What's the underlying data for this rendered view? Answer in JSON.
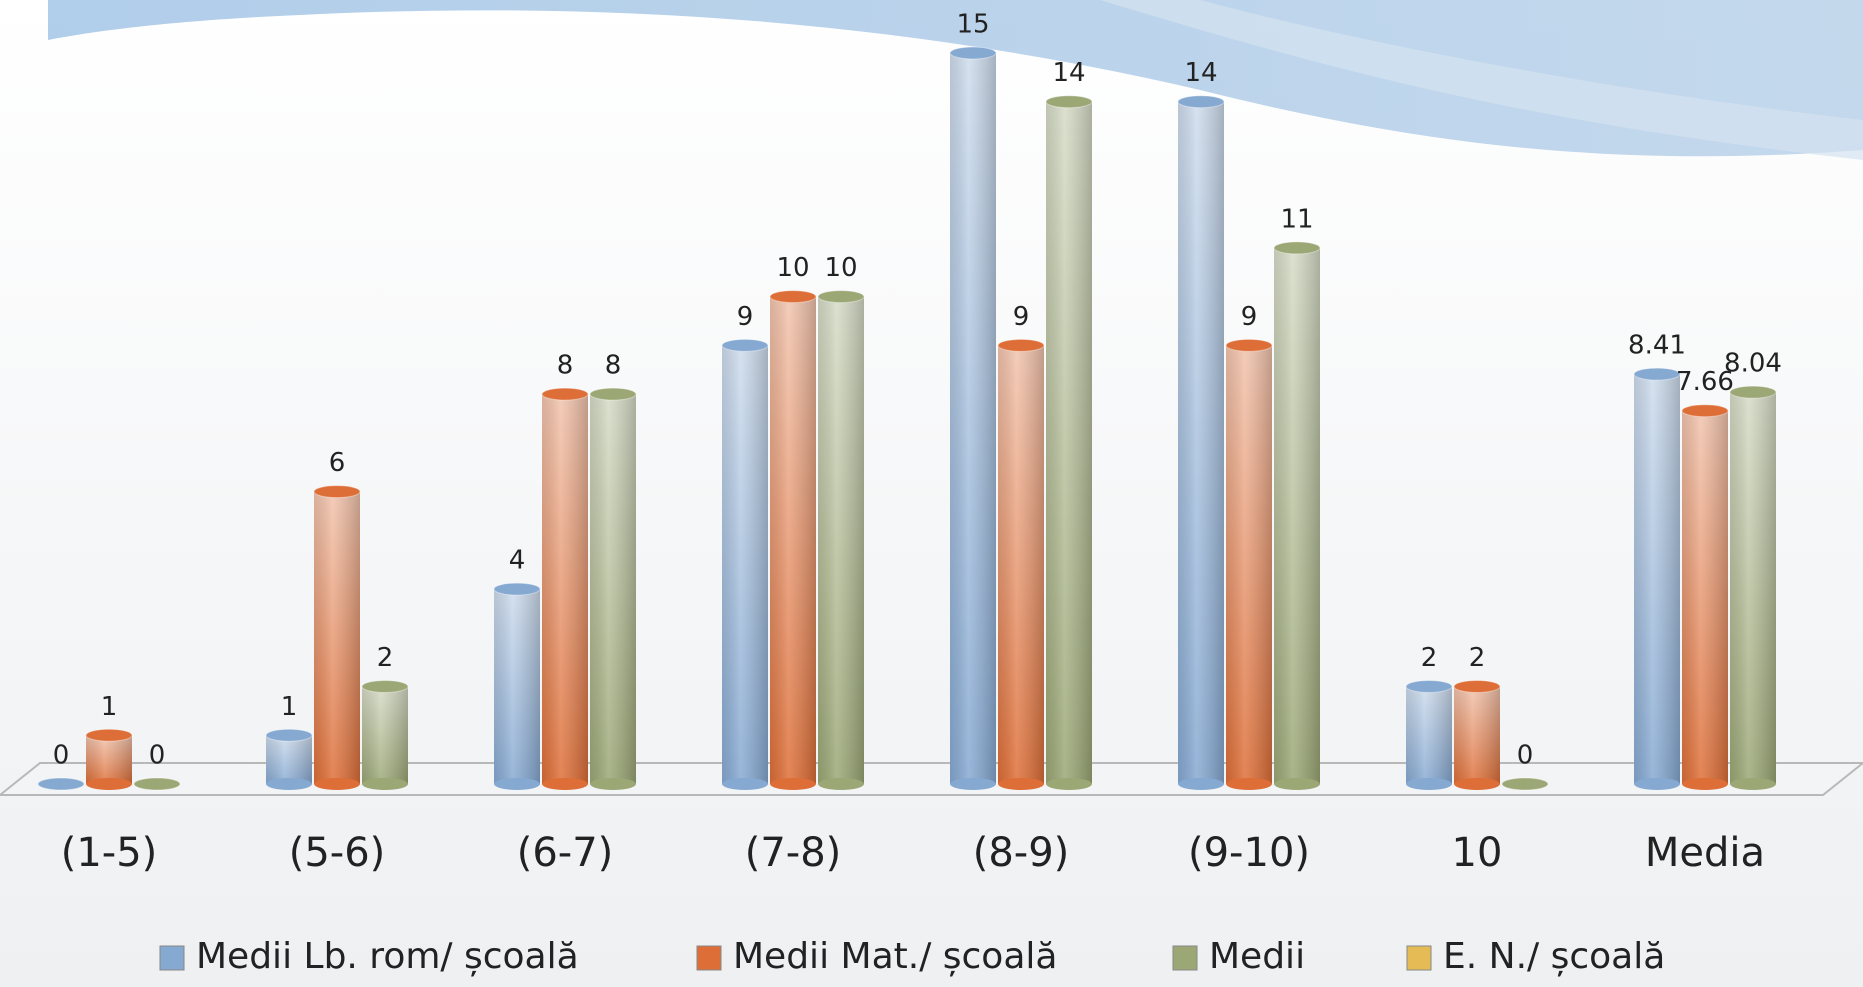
{
  "chart_data": {
    "type": "bar",
    "categories": [
      "(1-5)",
      "(5-6)",
      "(6-7)",
      "(7-8)",
      "(8-9)",
      "(9-10)",
      "10",
      "Media"
    ],
    "series": [
      {
        "name": "Medii Lb. rom/ școală",
        "color": "#86a9d2",
        "values": [
          0,
          1,
          4,
          9,
          15,
          14,
          2,
          8.41
        ]
      },
      {
        "name": "Medii Mat./ școală",
        "color": "#de6e37",
        "values": [
          1,
          6,
          8,
          10,
          9,
          9,
          2,
          7.66
        ]
      },
      {
        "name": "Medii",
        "color": "#9ba775",
        "values": [
          0,
          2,
          8,
          10,
          14,
          11,
          0,
          8.04
        ]
      },
      {
        "name": "E. N./ școală",
        "color": "#e5bb55",
        "values": [
          null,
          null,
          null,
          null,
          null,
          null,
          null,
          null
        ]
      }
    ],
    "legend": "bottom"
  }
}
